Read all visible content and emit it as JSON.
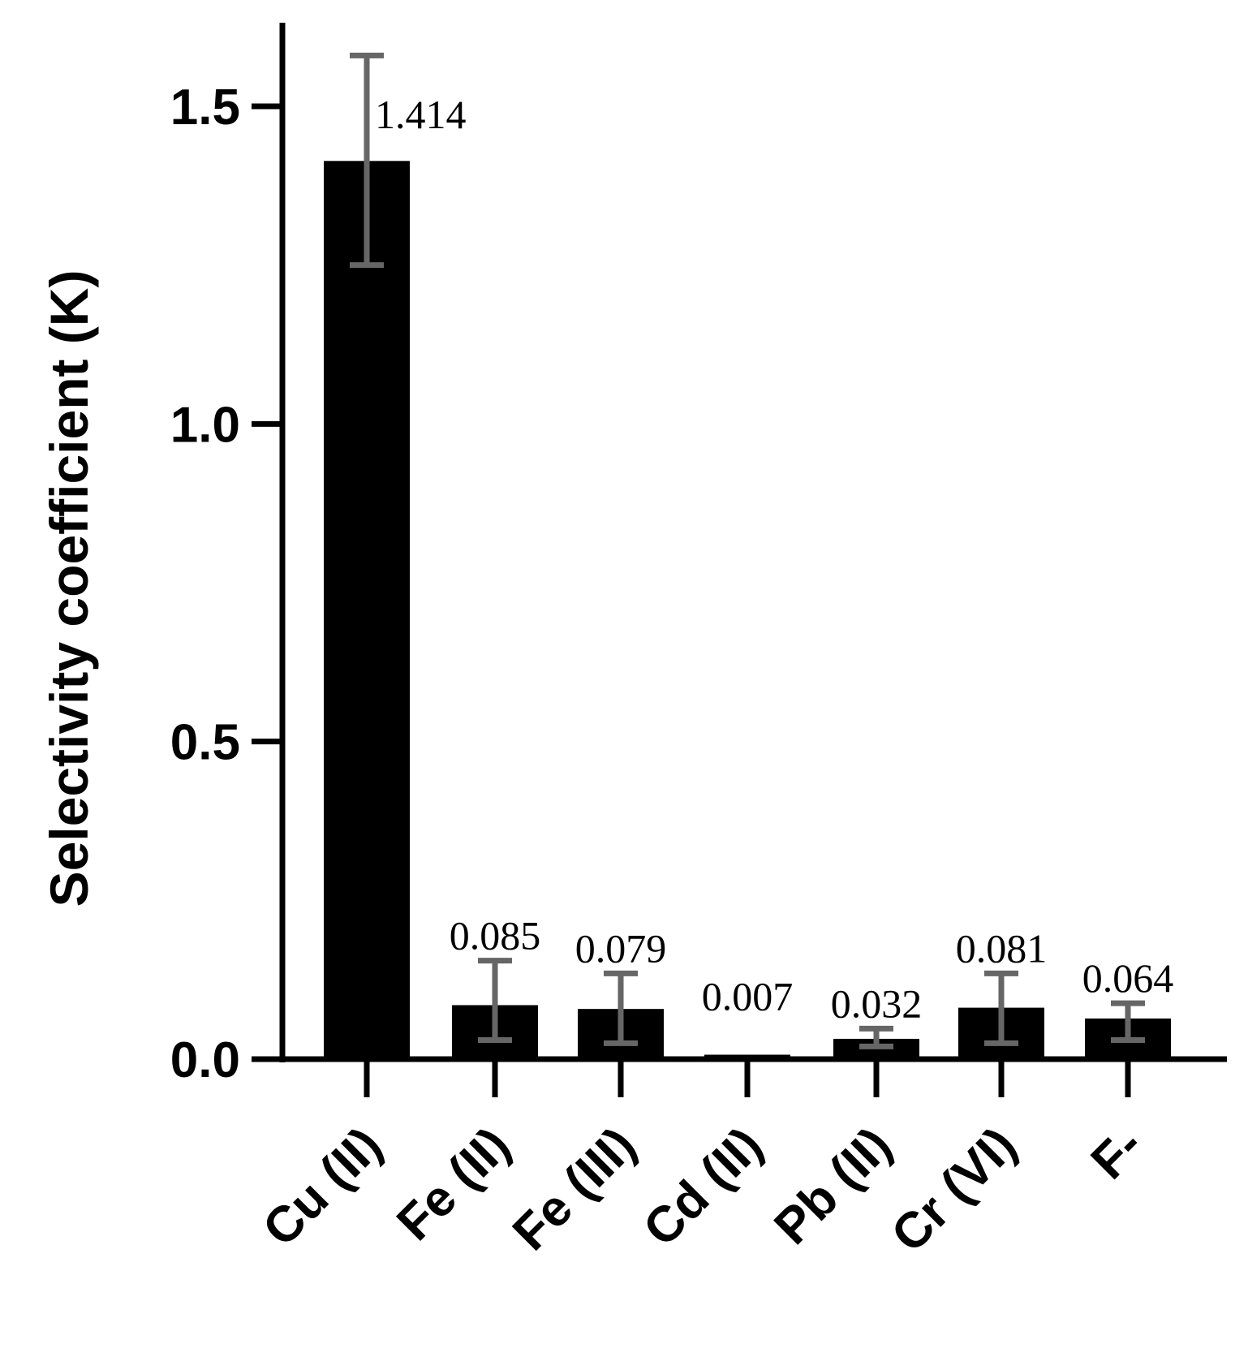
{
  "chart_data": {
    "type": "bar",
    "title": "",
    "xlabel": "",
    "ylabel": "Selectivity coefficient (K)",
    "categories": [
      "Cu (II)",
      "Fe (II)",
      "Fe (III)",
      "Cd (II)",
      "Pb (II)",
      "Cr (VI)",
      "F-"
    ],
    "values": [
      1.414,
      0.085,
      0.079,
      0.007,
      0.032,
      0.081,
      0.064
    ],
    "data_labels": [
      "1.414",
      "0.085",
      "0.079",
      "0.007",
      "0.032",
      "0.081",
      "0.064"
    ],
    "error_low": [
      1.25,
      0.03,
      0.025,
      null,
      0.02,
      0.025,
      0.03
    ],
    "error_high": [
      1.58,
      0.155,
      0.135,
      null,
      0.048,
      0.135,
      0.088
    ],
    "ylim": [
      0,
      1.6
    ],
    "yticks": [
      0.0,
      0.5,
      1.0,
      1.5
    ],
    "ytick_labels": [
      "0.0",
      "0.5",
      "1.0",
      "1.5"
    ],
    "grid": false,
    "legend": "none",
    "colors": {
      "bar": "#000000",
      "error_bar": "#666666",
      "axis": "#000000"
    }
  }
}
